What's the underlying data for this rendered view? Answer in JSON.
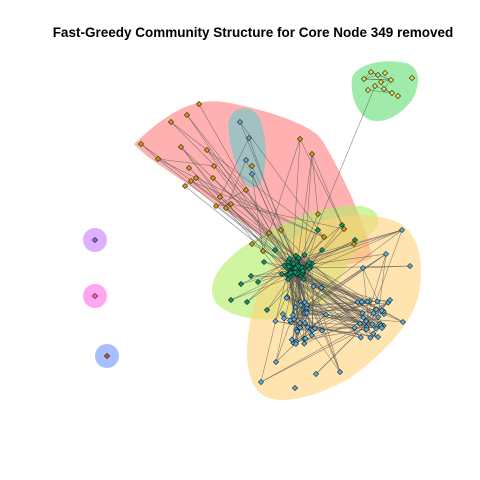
{
  "title": "Fast-Greedy Community Structure for Core Node 349 removed",
  "communities": [
    {
      "id": "red",
      "hull_color": "#FF8080",
      "node_color": "#E69F00"
    },
    {
      "id": "teal",
      "hull_color": "#8FC9C9",
      "node_color": "#56B4E9"
    },
    {
      "id": "lime",
      "hull_color": "#B8F07A",
      "node_color": "#009E73"
    },
    {
      "id": "orange",
      "hull_color": "#FFD27A",
      "node_color": "#56B4E9"
    },
    {
      "id": "green-small",
      "hull_color": "#8FE89A",
      "node_color": "#F0E442"
    },
    {
      "id": "purple",
      "hull_color": "#D7A8FF",
      "node_color": "#9B59FF"
    },
    {
      "id": "pink",
      "hull_color": "#FF9CF0",
      "node_color": "#FF66CC"
    },
    {
      "id": "blue",
      "hull_color": "#9FB8FF",
      "node_color": "#D55E00"
    }
  ]
}
